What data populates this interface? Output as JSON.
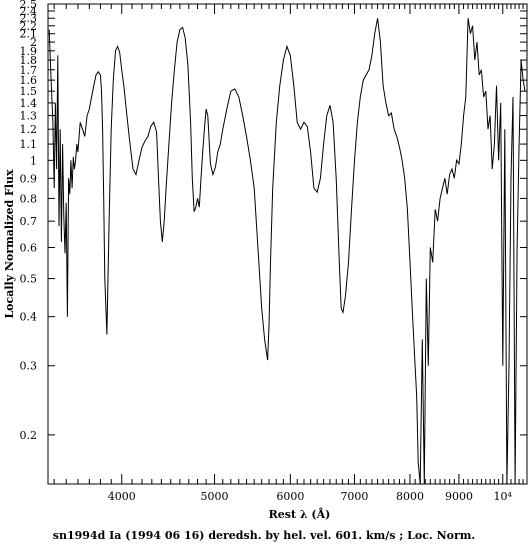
{
  "chart_data": {
    "type": "line",
    "title": "",
    "caption": "sn1994d Ia (1994 06 16) deredsh. by hel. vel.   601. km/s ;  Loc. Norm.",
    "xlabel": "Rest λ (Å)",
    "ylabel": "Locally Normalized Flux",
    "x_scale": "log",
    "y_scale": "log",
    "xlim": [
      3350,
      10600
    ],
    "ylim": [
      0.15,
      2.5
    ],
    "x_major_ticks": [
      {
        "value": 4000,
        "label": "4000"
      },
      {
        "value": 5000,
        "label": "5000"
      },
      {
        "value": 6000,
        "label": "6000"
      },
      {
        "value": 7000,
        "label": "7000"
      },
      {
        "value": 8000,
        "label": "8000"
      },
      {
        "value": 9000,
        "label": "9000"
      },
      {
        "value": 10000,
        "label": "10⁴"
      }
    ],
    "y_ticks": [
      {
        "value": 0.2,
        "label": "0.2"
      },
      {
        "value": 0.3,
        "label": "0.3"
      },
      {
        "value": 0.4,
        "label": "0.4"
      },
      {
        "value": 0.5,
        "label": "0.5"
      },
      {
        "value": 0.6,
        "label": "0.6"
      },
      {
        "value": 0.7,
        "label": "0.7"
      },
      {
        "value": 0.8,
        "label": "0.8"
      },
      {
        "value": 0.9,
        "label": "0.9"
      },
      {
        "value": 1.0,
        "label": "1"
      },
      {
        "value": 1.1,
        "label": "1.1"
      },
      {
        "value": 1.2,
        "label": "1.2"
      },
      {
        "value": 1.3,
        "label": "1.3"
      },
      {
        "value": 1.4,
        "label": "1.4"
      },
      {
        "value": 1.5,
        "label": "1.5"
      },
      {
        "value": 1.6,
        "label": "1.6"
      },
      {
        "value": 1.7,
        "label": "1.7"
      },
      {
        "value": 1.8,
        "label": "1.8"
      },
      {
        "value": 1.9,
        "label": "1.9"
      },
      {
        "value": 2.0,
        "label": "2"
      },
      {
        "value": 2.1,
        "label": "2.1"
      },
      {
        "value": 2.2,
        "label": "2.2"
      },
      {
        "value": 2.3,
        "label": "2.3"
      },
      {
        "value": 2.4,
        "label": "2.4"
      },
      {
        "value": 2.5,
        "label": "2.5"
      }
    ],
    "grid": false,
    "legend": "none",
    "series": [
      {
        "x": [
          3360,
          3375,
          3390,
          3400,
          3410,
          3420,
          3430,
          3440,
          3450,
          3460,
          3470,
          3480,
          3490,
          3500,
          3510,
          3520,
          3530,
          3540,
          3550,
          3560,
          3570,
          3580,
          3590,
          3600,
          3620,
          3640,
          3660,
          3680,
          3700,
          3720,
          3740,
          3760,
          3780,
          3800,
          3810,
          3820,
          3830,
          3840,
          3860,
          3880,
          3900,
          3920,
          3940,
          3960,
          3980,
          4000,
          4020,
          4050,
          4080,
          4110,
          4140,
          4170,
          4200,
          4230,
          4260,
          4290,
          4320,
          4350,
          4370,
          4390,
          4410,
          4430,
          4450,
          4480,
          4510,
          4540,
          4570,
          4600,
          4630,
          4660,
          4690,
          4720,
          4740,
          4760,
          4780,
          4800,
          4820,
          4840,
          4860,
          4880,
          4900,
          4920,
          4950,
          4980,
          5010,
          5040,
          5070,
          5100,
          5150,
          5200,
          5250,
          5300,
          5350,
          5400,
          5450,
          5500,
          5550,
          5600,
          5640,
          5680,
          5700,
          5720,
          5750,
          5800,
          5850,
          5900,
          5950,
          6000,
          6050,
          6100,
          6150,
          6200,
          6250,
          6300,
          6350,
          6400,
          6450,
          6500,
          6550,
          6600,
          6650,
          6700,
          6750,
          6780,
          6810,
          6850,
          6900,
          6950,
          7000,
          7050,
          7100,
          7150,
          7200,
          7250,
          7300,
          7350,
          7400,
          7450,
          7500,
          7550,
          7600,
          7650,
          7700,
          7750,
          7800,
          7850,
          7900,
          7950,
          8000,
          8050,
          8100,
          8130,
          8160,
          8200,
          8240,
          8280,
          8320,
          8360,
          8400,
          8450,
          8500,
          8550,
          8600,
          8650,
          8700,
          8750,
          8800,
          8850,
          8900,
          8950,
          9000,
          9050,
          9100,
          9150,
          9200,
          9250,
          9300,
          9350,
          9400,
          9450,
          9500,
          9550,
          9600,
          9650,
          9700,
          9750,
          9800,
          9850,
          9900,
          9950,
          10000,
          10050,
          10100,
          10150,
          10200,
          10250,
          10300,
          10350,
          10400,
          10450,
          10500,
          10550
        ],
        "y": [
          2.15,
          1.6,
          1.25,
          0.85,
          1.4,
          0.95,
          1.85,
          0.68,
          1.2,
          0.62,
          1.1,
          0.72,
          0.58,
          0.78,
          0.4,
          0.9,
          0.82,
          1.0,
          0.85,
          1.02,
          0.95,
          1.0,
          1.1,
          1.05,
          1.25,
          1.2,
          1.15,
          1.3,
          1.35,
          1.45,
          1.55,
          1.65,
          1.68,
          1.65,
          1.5,
          1.2,
          0.8,
          0.5,
          0.36,
          0.7,
          1.2,
          1.6,
          1.9,
          1.95,
          1.88,
          1.7,
          1.55,
          1.3,
          1.1,
          0.95,
          0.92,
          1.0,
          1.08,
          1.12,
          1.15,
          1.22,
          1.25,
          1.18,
          0.9,
          0.7,
          0.62,
          0.7,
          0.85,
          1.1,
          1.4,
          1.7,
          2.0,
          2.15,
          2.18,
          2.05,
          1.75,
          1.25,
          0.9,
          0.74,
          0.76,
          0.8,
          0.76,
          0.9,
          1.05,
          1.2,
          1.35,
          1.3,
          0.98,
          0.92,
          0.96,
          1.05,
          1.1,
          1.2,
          1.35,
          1.5,
          1.52,
          1.45,
          1.3,
          1.15,
          1.0,
          0.85,
          0.6,
          0.42,
          0.35,
          0.31,
          0.38,
          0.55,
          0.85,
          1.25,
          1.55,
          1.8,
          1.95,
          1.85,
          1.55,
          1.25,
          1.2,
          1.25,
          1.22,
          1.05,
          0.85,
          0.83,
          0.9,
          1.1,
          1.3,
          1.38,
          1.25,
          0.9,
          0.55,
          0.42,
          0.41,
          0.45,
          0.55,
          0.75,
          1.0,
          1.25,
          1.45,
          1.6,
          1.65,
          1.7,
          1.85,
          2.1,
          2.3,
          2.0,
          1.55,
          1.4,
          1.3,
          1.32,
          1.2,
          1.15,
          1.08,
          1.0,
          0.9,
          0.75,
          0.55,
          0.4,
          0.3,
          0.25,
          0.17,
          0.14,
          0.35,
          0.15,
          0.5,
          0.3,
          0.6,
          0.55,
          0.75,
          0.7,
          0.8,
          0.85,
          0.9,
          0.82,
          0.92,
          0.95,
          0.9,
          1.0,
          0.98,
          1.1,
          1.3,
          1.45,
          2.3,
          2.1,
          2.2,
          1.8,
          2.0,
          1.65,
          1.7,
          1.45,
          1.5,
          1.2,
          1.3,
          0.95,
          1.1,
          1.55,
          1.0,
          1.4,
          0.3,
          1.2,
          0.14,
          0.3,
          0.9,
          1.45,
          0.14,
          0.6,
          1.1,
          1.8,
          1.6,
          1.5
        ]
      }
    ]
  }
}
